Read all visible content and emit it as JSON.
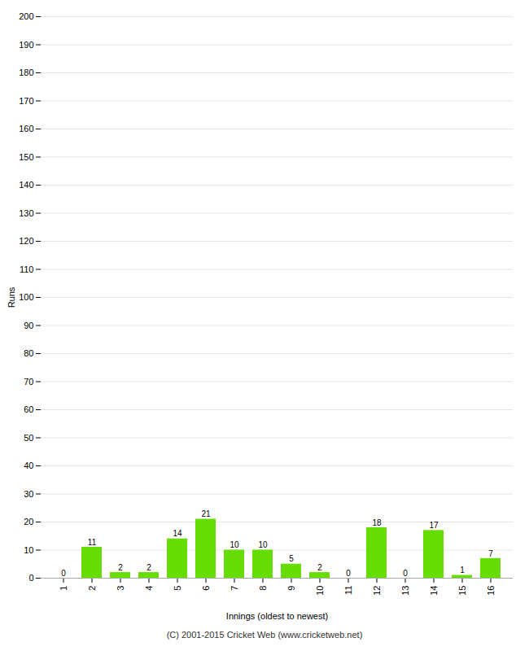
{
  "chart_data": {
    "type": "bar",
    "caption": "(C) 2001-2015 Cricket Web (www.cricketweb.net)",
    "xlabel": "Innings (oldest to newest)",
    "ylabel": "Runs",
    "categories": [
      "1",
      "2",
      "3",
      "4",
      "5",
      "6",
      "7",
      "8",
      "9",
      "10",
      "11",
      "12",
      "13",
      "14",
      "15",
      "16"
    ],
    "values": [
      0,
      11,
      2,
      2,
      14,
      21,
      10,
      10,
      5,
      2,
      0,
      18,
      0,
      17,
      1,
      7
    ],
    "color": "#66dd00",
    "ylim": [
      0,
      200
    ],
    "yticks": [
      0,
      10,
      20,
      30,
      40,
      50,
      60,
      70,
      80,
      90,
      100,
      110,
      120,
      130,
      140,
      150,
      160,
      170,
      180,
      190,
      200
    ],
    "grid": true,
    "data_labels": true
  }
}
